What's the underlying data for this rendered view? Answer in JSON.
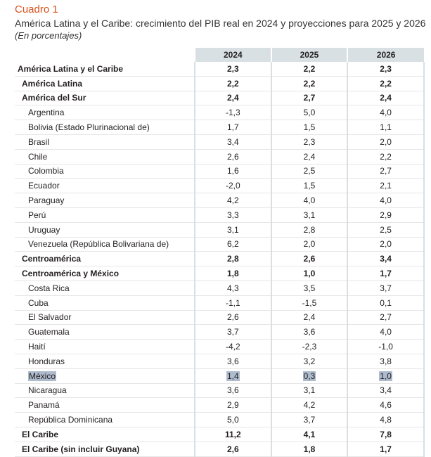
{
  "table_label": "Cuadro 1",
  "title": "América Latina y el Caribe: crecimiento del PIB real en 2024 y proyecciones para 2025 y 2026",
  "subtitle": "(En porcentajes)",
  "columns": [
    "2024",
    "2025",
    "2026"
  ],
  "rows": [
    {
      "name": "América Latina y el Caribe",
      "level": 0,
      "bold": true,
      "values": [
        "2,3",
        "2,2",
        "2,3"
      ]
    },
    {
      "name": "América Latina",
      "level": 1,
      "bold": true,
      "values": [
        "2,2",
        "2,2",
        "2,2"
      ]
    },
    {
      "name": "América del Sur",
      "level": 1,
      "bold": true,
      "values": [
        "2,4",
        "2,7",
        "2,4"
      ]
    },
    {
      "name": "Argentina",
      "level": 2,
      "bold": false,
      "values": [
        "-1,3",
        "5,0",
        "4,0"
      ]
    },
    {
      "name": "Bolivia (Estado Plurinacional de)",
      "level": 2,
      "bold": false,
      "values": [
        "1,7",
        "1,5",
        "1,1"
      ]
    },
    {
      "name": "Brasil",
      "level": 2,
      "bold": false,
      "values": [
        "3,4",
        "2,3",
        "2,0"
      ]
    },
    {
      "name": "Chile",
      "level": 2,
      "bold": false,
      "values": [
        "2,6",
        "2,4",
        "2,2"
      ]
    },
    {
      "name": "Colombia",
      "level": 2,
      "bold": false,
      "values": [
        "1,6",
        "2,5",
        "2,7"
      ]
    },
    {
      "name": "Ecuador",
      "level": 2,
      "bold": false,
      "values": [
        "-2,0",
        "1,5",
        "2,1"
      ]
    },
    {
      "name": "Paraguay",
      "level": 2,
      "bold": false,
      "values": [
        "4,2",
        "4,0",
        "4,0"
      ]
    },
    {
      "name": "Perú",
      "level": 2,
      "bold": false,
      "values": [
        "3,3",
        "3,1",
        "2,9"
      ]
    },
    {
      "name": "Uruguay",
      "level": 2,
      "bold": false,
      "values": [
        "3,1",
        "2,8",
        "2,5"
      ]
    },
    {
      "name": "Venezuela (República Bolivariana de)",
      "level": 2,
      "bold": false,
      "values": [
        "6,2",
        "2,0",
        "2,0"
      ]
    },
    {
      "name": "Centroamérica",
      "level": 1,
      "bold": true,
      "values": [
        "2,8",
        "2,6",
        "3,4"
      ]
    },
    {
      "name": "Centroamérica y México",
      "level": 1,
      "bold": true,
      "values": [
        "1,8",
        "1,0",
        "1,7"
      ]
    },
    {
      "name": "Costa Rica",
      "level": 2,
      "bold": false,
      "values": [
        "4,3",
        "3,5",
        "3,7"
      ]
    },
    {
      "name": "Cuba",
      "level": 2,
      "bold": false,
      "values": [
        "-1,1",
        "-1,5",
        "0,1"
      ]
    },
    {
      "name": "El Salvador",
      "level": 2,
      "bold": false,
      "values": [
        "2,6",
        "2,4",
        "2,7"
      ]
    },
    {
      "name": "Guatemala",
      "level": 2,
      "bold": false,
      "values": [
        "3,7",
        "3,6",
        "4,0"
      ]
    },
    {
      "name": "Haití",
      "level": 2,
      "bold": false,
      "values": [
        "-4,2",
        "-2,3",
        "-1,0"
      ]
    },
    {
      "name": "Honduras",
      "level": 2,
      "bold": false,
      "values": [
        "3,6",
        "3,2",
        "3,8"
      ]
    },
    {
      "name": "México",
      "level": 2,
      "bold": false,
      "highlight": true,
      "values": [
        "1,4",
        "0,3",
        "1,0"
      ]
    },
    {
      "name": "Nicaragua",
      "level": 2,
      "bold": false,
      "values": [
        "3,6",
        "3,1",
        "3,4"
      ]
    },
    {
      "name": "Panamá",
      "level": 2,
      "bold": false,
      "values": [
        "2,9",
        "4,2",
        "4,6"
      ]
    },
    {
      "name": "República Dominicana",
      "level": 2,
      "bold": false,
      "values": [
        "5,0",
        "3,7",
        "4,8"
      ]
    },
    {
      "name": "El Caribe",
      "level": 1,
      "bold": true,
      "values": [
        "11,2",
        "4,1",
        "7,8"
      ]
    },
    {
      "name": "El Caribe (sin incluir Guyana)",
      "level": 1,
      "bold": true,
      "values": [
        "2,6",
        "1,8",
        "1,7"
      ]
    }
  ],
  "colors": {
    "label": "#d9531e",
    "header_bg": "#d8e0e3",
    "highlight": "#aebbcc"
  }
}
